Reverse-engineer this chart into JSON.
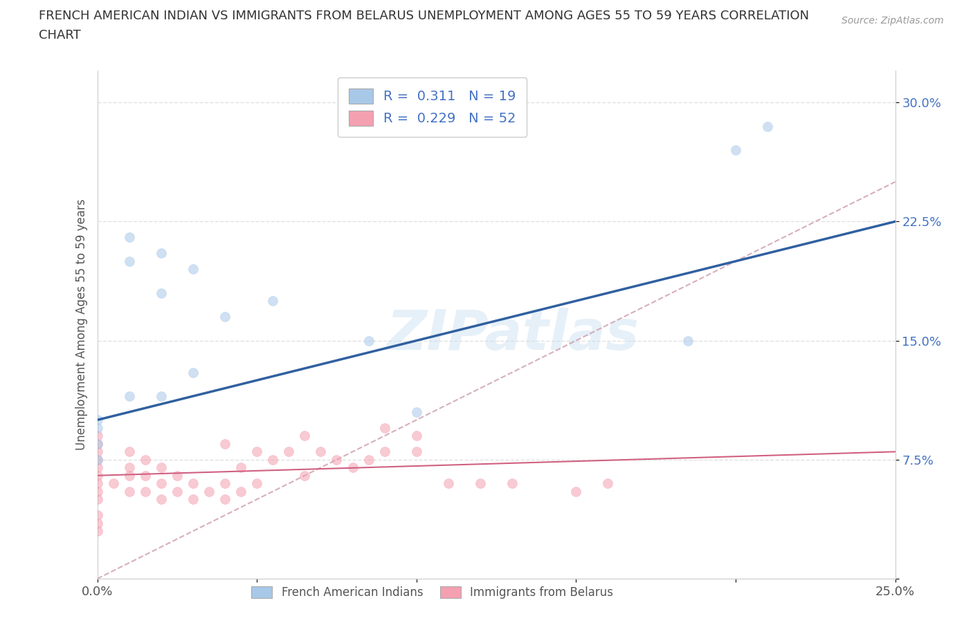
{
  "title_line1": "FRENCH AMERICAN INDIAN VS IMMIGRANTS FROM BELARUS UNEMPLOYMENT AMONG AGES 55 TO 59 YEARS CORRELATION",
  "title_line2": "CHART",
  "source_text": "Source: ZipAtlas.com",
  "ylabel": "Unemployment Among Ages 55 to 59 years",
  "xlim": [
    0.0,
    0.25
  ],
  "ylim": [
    0.0,
    0.32
  ],
  "xticks": [
    0.0,
    0.05,
    0.1,
    0.15,
    0.2,
    0.25
  ],
  "xtick_labels": [
    "0.0%",
    "",
    "",
    "",
    "",
    "25.0%"
  ],
  "yticks": [
    0.0,
    0.075,
    0.15,
    0.225,
    0.3
  ],
  "ytick_labels": [
    "",
    "7.5%",
    "15.0%",
    "22.5%",
    "30.0%"
  ],
  "blue_color": "#a8c8e8",
  "pink_color": "#f4a0b0",
  "blue_line_color": "#3060a0",
  "pink_line_color": "#d06080",
  "diag_color": "#d0a0b0",
  "watermark_text": "ZIPatlas",
  "legend_label1": "French American Indians",
  "legend_label2": "Immigrants from Belarus",
  "R_blue": 0.311,
  "N_blue": 19,
  "R_pink": 0.229,
  "N_pink": 52,
  "blue_points_x": [
    0.01,
    0.01,
    0.02,
    0.02,
    0.03,
    0.04,
    0.055,
    0.085,
    0.21,
    0.2,
    0.185,
    0.0,
    0.0,
    0.0,
    0.0,
    0.03,
    0.1,
    0.01,
    0.02
  ],
  "blue_points_y": [
    0.2,
    0.215,
    0.205,
    0.18,
    0.195,
    0.165,
    0.175,
    0.15,
    0.285,
    0.27,
    0.15,
    0.1,
    0.095,
    0.085,
    0.075,
    0.13,
    0.105,
    0.115,
    0.115
  ],
  "pink_points_x": [
    0.0,
    0.0,
    0.0,
    0.0,
    0.0,
    0.0,
    0.0,
    0.0,
    0.0,
    0.0,
    0.0,
    0.0,
    0.005,
    0.01,
    0.01,
    0.01,
    0.01,
    0.015,
    0.015,
    0.015,
    0.02,
    0.02,
    0.02,
    0.025,
    0.025,
    0.03,
    0.03,
    0.035,
    0.04,
    0.04,
    0.04,
    0.045,
    0.045,
    0.05,
    0.05,
    0.055,
    0.06,
    0.065,
    0.065,
    0.07,
    0.075,
    0.08,
    0.085,
    0.09,
    0.09,
    0.1,
    0.1,
    0.11,
    0.12,
    0.13,
    0.15,
    0.16
  ],
  "pink_points_y": [
    0.03,
    0.035,
    0.04,
    0.05,
    0.055,
    0.06,
    0.065,
    0.07,
    0.075,
    0.08,
    0.085,
    0.09,
    0.06,
    0.055,
    0.065,
    0.07,
    0.08,
    0.055,
    0.065,
    0.075,
    0.05,
    0.06,
    0.07,
    0.055,
    0.065,
    0.05,
    0.06,
    0.055,
    0.05,
    0.06,
    0.085,
    0.055,
    0.07,
    0.06,
    0.08,
    0.075,
    0.08,
    0.065,
    0.09,
    0.08,
    0.075,
    0.07,
    0.075,
    0.08,
    0.095,
    0.08,
    0.09,
    0.06,
    0.06,
    0.06,
    0.055,
    0.06
  ],
  "grid_color": "#dddddd",
  "background_color": "#ffffff",
  "marker_size": 100,
  "marker_alpha": 0.55,
  "blue_line_y0": 0.1,
  "blue_line_y1": 0.225,
  "pink_line_y0": 0.065,
  "pink_line_y1": 0.08
}
